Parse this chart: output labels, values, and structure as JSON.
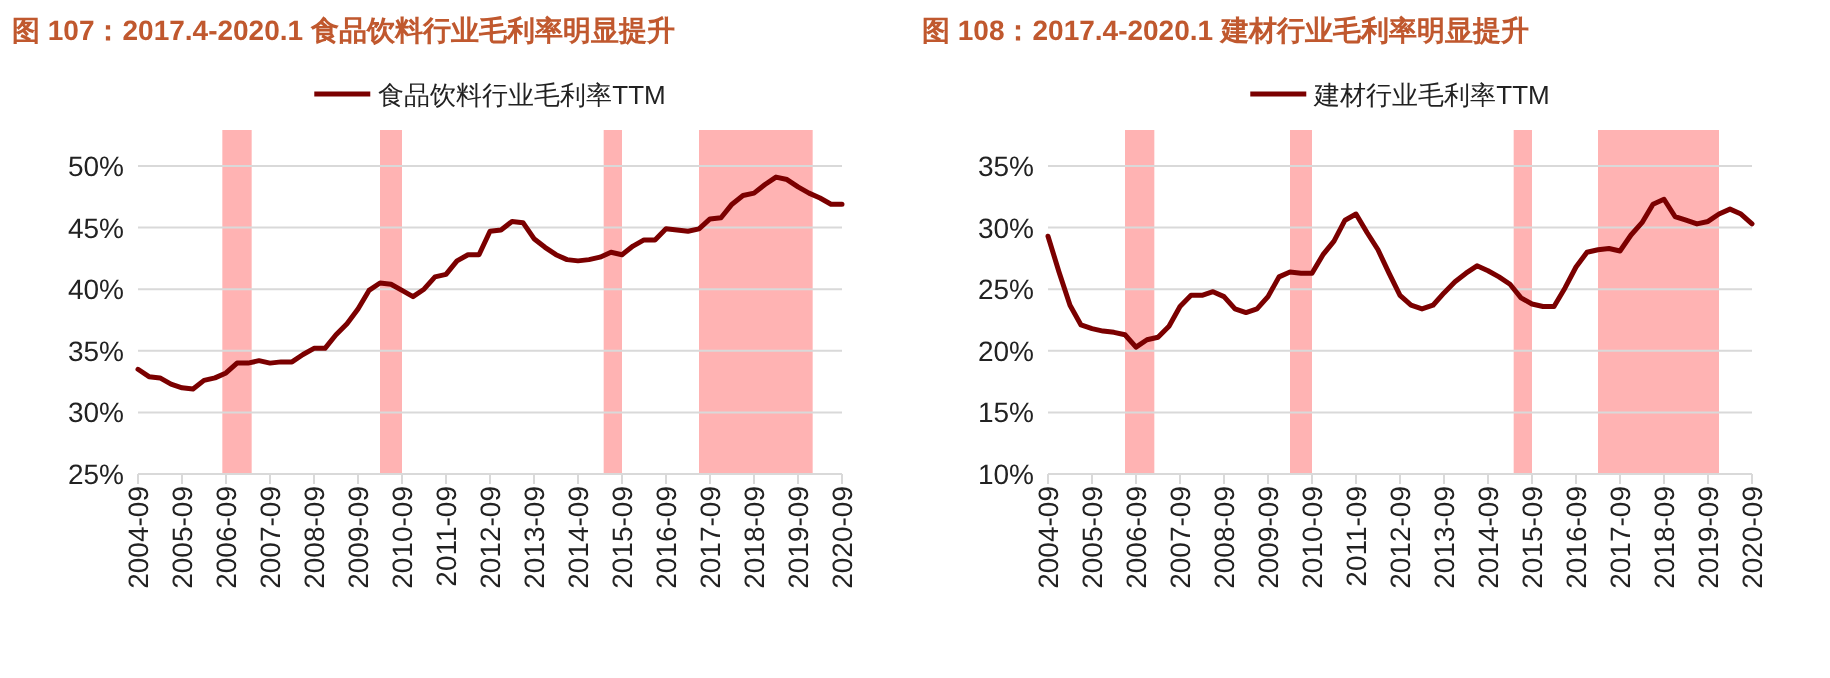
{
  "chart_data": [
    {
      "type": "line",
      "title": "图 107：2017.4-2020.1 食品饮料行业毛利率明显提升",
      "legend": "top",
      "grid": "y",
      "x": [
        "2004-09",
        "2004-12",
        "2005-03",
        "2005-06",
        "2005-09",
        "2005-12",
        "2006-03",
        "2006-06",
        "2006-09",
        "2006-12",
        "2007-03",
        "2007-06",
        "2007-09",
        "2007-12",
        "2008-03",
        "2008-06",
        "2008-09",
        "2008-12",
        "2009-03",
        "2009-06",
        "2009-09",
        "2009-12",
        "2010-03",
        "2010-06",
        "2010-09",
        "2010-12",
        "2011-03",
        "2011-06",
        "2011-09",
        "2011-12",
        "2012-03",
        "2012-06",
        "2012-09",
        "2012-12",
        "2013-03",
        "2013-06",
        "2013-09",
        "2013-12",
        "2014-03",
        "2014-06",
        "2014-09",
        "2014-12",
        "2015-03",
        "2015-06",
        "2015-09",
        "2015-12",
        "2016-03",
        "2016-06",
        "2016-09",
        "2016-12",
        "2017-03",
        "2017-06",
        "2017-09",
        "2017-12",
        "2018-03",
        "2018-06",
        "2018-09",
        "2018-12",
        "2019-03",
        "2019-06",
        "2019-09",
        "2019-12",
        "2020-03",
        "2020-06",
        "2020-09"
      ],
      "series": [
        {
          "name": "食品饮料行业毛利率TTM",
          "color": "#7b0000",
          "values": [
            33.5,
            32.9,
            32.8,
            32.3,
            32.0,
            31.9,
            32.6,
            32.8,
            33.2,
            34.0,
            34.0,
            34.2,
            34.0,
            34.1,
            34.1,
            34.7,
            35.2,
            35.2,
            36.3,
            37.2,
            38.4,
            39.9,
            40.5,
            40.4,
            39.9,
            39.4,
            40.0,
            41.0,
            41.2,
            42.3,
            42.8,
            42.8,
            44.7,
            44.8,
            45.5,
            45.4,
            44.1,
            43.4,
            42.8,
            42.4,
            42.3,
            42.4,
            42.6,
            43.0,
            42.8,
            43.5,
            44.0,
            44.0,
            44.9,
            44.8,
            44.7,
            44.9,
            45.7,
            45.8,
            46.9,
            47.6,
            47.8,
            48.5,
            49.1,
            48.9,
            48.3,
            47.8,
            47.4,
            46.9,
            46.9
          ]
        }
      ],
      "xlim": [
        "2004-09",
        "2020-09"
      ],
      "xticks": [
        "2004-09",
        "2005-09",
        "2006-09",
        "2007-09",
        "2008-09",
        "2009-09",
        "2010-09",
        "2011-09",
        "2012-09",
        "2013-09",
        "2014-09",
        "2015-09",
        "2016-09",
        "2017-09",
        "2018-09",
        "2019-09",
        "2020-09"
      ],
      "ylim": [
        25,
        50
      ],
      "yticks": [
        {
          "value": 25,
          "label": "25%"
        },
        {
          "value": 30,
          "label": "30%"
        },
        {
          "value": 35,
          "label": "35%"
        },
        {
          "value": 40,
          "label": "40%"
        },
        {
          "value": 45,
          "label": "45%"
        },
        {
          "value": 50,
          "label": "50%"
        }
      ],
      "bands": [
        {
          "axis": "x",
          "from": "2006-08",
          "to": "2007-04",
          "color": "#ffb3b3"
        },
        {
          "axis": "x",
          "from": "2010-03",
          "to": "2010-09",
          "color": "#ffb3b3"
        },
        {
          "axis": "x",
          "from": "2015-04",
          "to": "2015-09",
          "color": "#ffb3b3"
        },
        {
          "axis": "x",
          "from": "2017-06",
          "to": "2020-01",
          "color": "#ffb3b3"
        }
      ]
    },
    {
      "type": "line",
      "title": "图 108：2017.4-2020.1 建材行业毛利率明显提升",
      "legend": "top",
      "grid": "y",
      "x": [
        "2004-09",
        "2004-12",
        "2005-03",
        "2005-06",
        "2005-09",
        "2005-12",
        "2006-03",
        "2006-06",
        "2006-09",
        "2006-12",
        "2007-03",
        "2007-06",
        "2007-09",
        "2007-12",
        "2008-03",
        "2008-06",
        "2008-09",
        "2008-12",
        "2009-03",
        "2009-06",
        "2009-09",
        "2009-12",
        "2010-03",
        "2010-06",
        "2010-09",
        "2010-12",
        "2011-03",
        "2011-06",
        "2011-09",
        "2011-12",
        "2012-03",
        "2012-06",
        "2012-09",
        "2012-12",
        "2013-03",
        "2013-06",
        "2013-09",
        "2013-12",
        "2014-03",
        "2014-06",
        "2014-09",
        "2014-12",
        "2015-03",
        "2015-06",
        "2015-09",
        "2015-12",
        "2016-03",
        "2016-06",
        "2016-09",
        "2016-12",
        "2017-03",
        "2017-06",
        "2017-09",
        "2017-12",
        "2018-03",
        "2018-06",
        "2018-09",
        "2018-12",
        "2019-03",
        "2019-06",
        "2019-09",
        "2019-12",
        "2020-03",
        "2020-06",
        "2020-09"
      ],
      "series": [
        {
          "name": "建材行业毛利率TTM",
          "color": "#7b0000",
          "values": [
            29.3,
            26.4,
            23.7,
            22.1,
            21.8,
            21.6,
            21.5,
            21.3,
            20.3,
            20.9,
            21.1,
            22.0,
            23.6,
            24.5,
            24.5,
            24.8,
            24.4,
            23.4,
            23.1,
            23.4,
            24.4,
            26.0,
            26.4,
            26.3,
            26.3,
            27.8,
            28.9,
            30.6,
            31.1,
            29.6,
            28.2,
            26.3,
            24.5,
            23.7,
            23.4,
            23.7,
            24.7,
            25.6,
            26.3,
            26.9,
            26.5,
            26.0,
            25.4,
            24.3,
            23.8,
            23.6,
            23.6,
            25.1,
            26.8,
            28.0,
            28.2,
            28.3,
            28.1,
            29.4,
            30.4,
            31.9,
            32.3,
            30.9,
            30.6,
            30.3,
            30.5,
            31.1,
            31.5,
            31.1,
            30.3
          ]
        }
      ],
      "xlim": [
        "2004-09",
        "2020-09"
      ],
      "xticks": [
        "2004-09",
        "2005-09",
        "2006-09",
        "2007-09",
        "2008-09",
        "2009-09",
        "2010-09",
        "2011-09",
        "2012-09",
        "2013-09",
        "2014-09",
        "2015-09",
        "2016-09",
        "2017-09",
        "2018-09",
        "2019-09",
        "2020-09"
      ],
      "ylim": [
        10,
        35
      ],
      "yticks": [
        {
          "value": 10,
          "label": "10%"
        },
        {
          "value": 15,
          "label": "15%"
        },
        {
          "value": 20,
          "label": "20%"
        },
        {
          "value": 25,
          "label": "25%"
        },
        {
          "value": 30,
          "label": "30%"
        },
        {
          "value": 35,
          "label": "35%"
        }
      ],
      "bands": [
        {
          "axis": "x",
          "from": "2006-06",
          "to": "2007-02",
          "color": "#ffb3b3"
        },
        {
          "axis": "x",
          "from": "2010-03",
          "to": "2010-09",
          "color": "#ffb3b3"
        },
        {
          "axis": "x",
          "from": "2015-04",
          "to": "2015-09",
          "color": "#ffb3b3"
        },
        {
          "axis": "x",
          "from": "2017-03",
          "to": "2019-12",
          "color": "#ffb3b3"
        }
      ]
    }
  ]
}
